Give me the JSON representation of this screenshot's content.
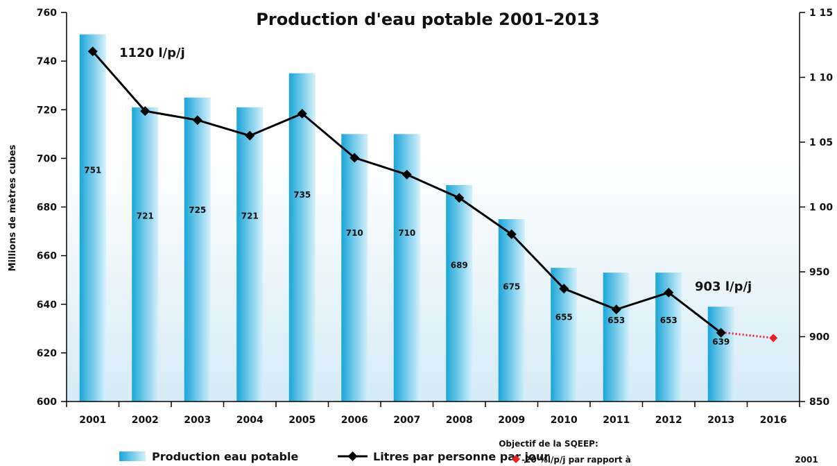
{
  "chart_data": {
    "type": "bar",
    "title": "Production d'eau potable 2001–2013",
    "ylabel": "Millions de mètres cubes",
    "categories": [
      "2001",
      "2002",
      "2003",
      "2004",
      "2005",
      "2006",
      "2007",
      "2008",
      "2009",
      "2010",
      "2011",
      "2012",
      "2013",
      "2016"
    ],
    "ylim": [
      600,
      760
    ],
    "yticks": [
      "600",
      "620",
      "640",
      "660",
      "680",
      "700",
      "720",
      "740",
      "760"
    ],
    "y2lim": [
      850,
      1150
    ],
    "y2ticks": [
      "850",
      "900",
      "950",
      "1 00",
      "1 05",
      "1 10",
      "1 15"
    ],
    "bars": {
      "name": "Production eau potable",
      "x": [
        "2001",
        "2002",
        "2003",
        "2004",
        "2005",
        "2006",
        "2007",
        "2008",
        "2009",
        "2010",
        "2011",
        "2012",
        "2013"
      ],
      "values": [
        751,
        721,
        725,
        721,
        735,
        710,
        710,
        689,
        675,
        655,
        653,
        653,
        639
      ],
      "labels": [
        "751",
        "721",
        "725",
        "721",
        "735",
        "710",
        "710",
        "689",
        "675",
        "655",
        "653",
        "653",
        "639"
      ]
    },
    "line": {
      "name": "Litres par personne par jour",
      "x": [
        "2001",
        "2002",
        "2003",
        "2004",
        "2005",
        "2006",
        "2007",
        "2008",
        "2009",
        "2010",
        "2011",
        "2012",
        "2013"
      ],
      "values": [
        1120,
        1074,
        1067,
        1055,
        1072,
        1038,
        1025,
        1007,
        979,
        937,
        921,
        934,
        903
      ]
    },
    "target": {
      "x": [
        "2013",
        "2016"
      ],
      "values": [
        903,
        899
      ]
    },
    "annotations": {
      "start": "1120 l/p/j",
      "end": "903 l/p/j"
    },
    "legend": {
      "bars": "Production eau potable",
      "line": "Litres par personne par jour",
      "target_title": "Objectif de la SQEEP:",
      "target_text": "-20 %l/p/j par rapport à",
      "target_year": "2001"
    },
    "colors": {
      "bar_dark": "#1aa6d8",
      "bar_light": "#d5f0fb",
      "line": "#000000",
      "target": "#e8202a",
      "bg_top": "#ffffff",
      "bg_bottom": "#d6ebf6"
    }
  }
}
